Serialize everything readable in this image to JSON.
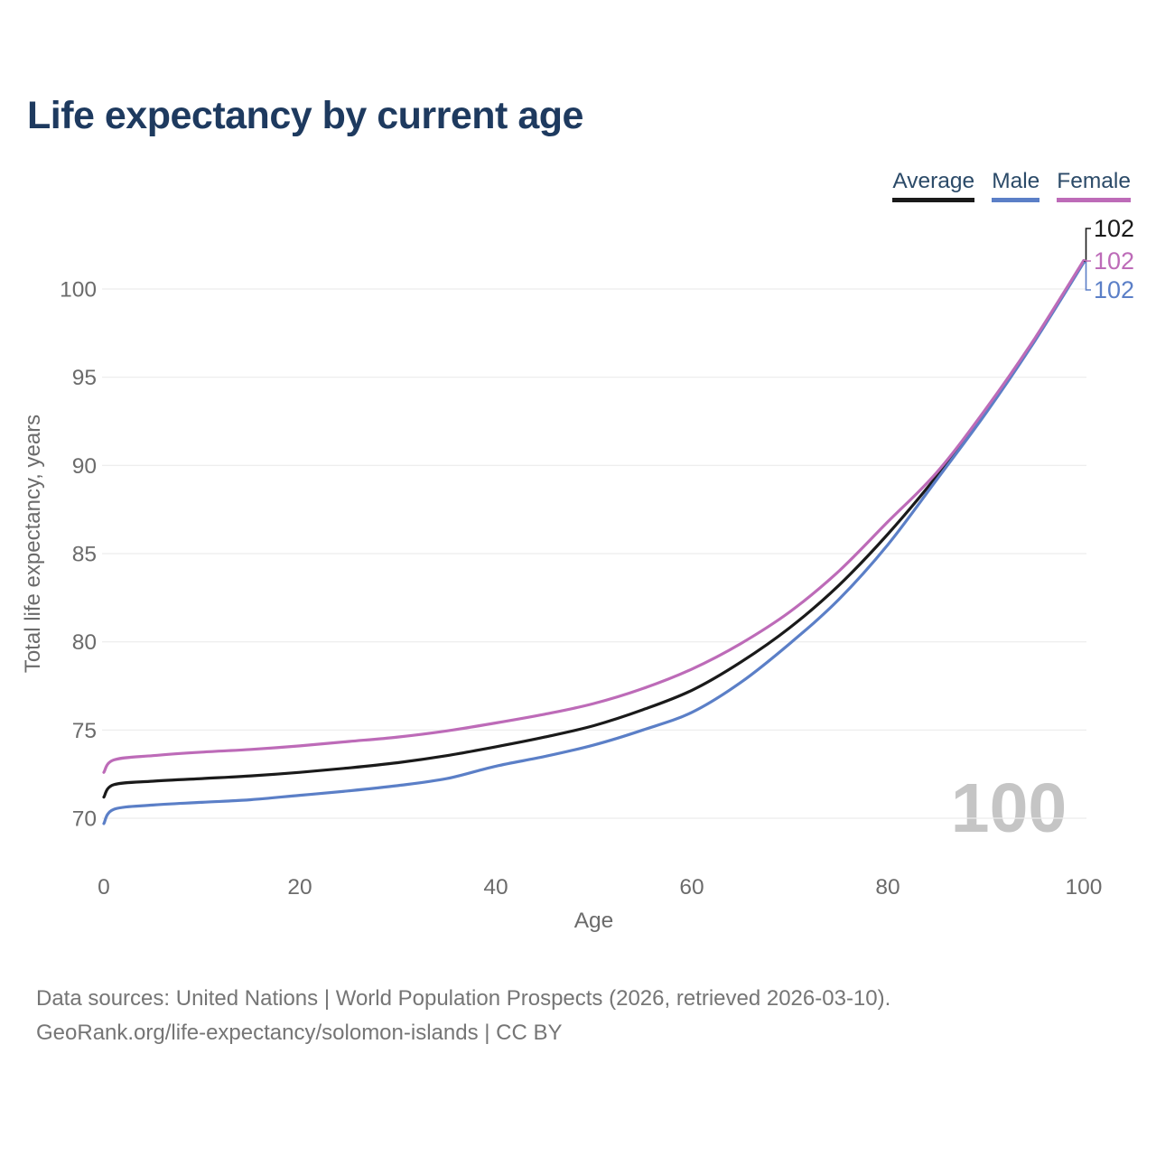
{
  "title": "Life expectancy by current age",
  "watermark": "100",
  "colors": {
    "title": "#1e3a5f",
    "legend_text": "#2b4a68",
    "average": "#1a1a1a",
    "male": "#5b7fc7",
    "female": "#bd6bb8",
    "grid": "#ececec",
    "tick_text": "#6b6b6b",
    "axis_title_text": "#6b6b6b",
    "watermark": "#c5c5c5",
    "footer_text": "#757575"
  },
  "footer": {
    "line1": "Data sources: United Nations | World Population Prospects (2026, retrieved 2026-03-10).",
    "line2": "GeoRank.org/life-expectancy/solomon-islands | CC BY"
  },
  "chart_data": {
    "type": "line",
    "title": "Life expectancy by current age",
    "xlabel": "Age",
    "ylabel": "Total life expectancy, years",
    "xlim": [
      0,
      100
    ],
    "ylim": [
      69.5,
      102
    ],
    "x_ticks": [
      0,
      20,
      40,
      60,
      80,
      100
    ],
    "y_ticks": [
      70,
      75,
      80,
      85,
      90,
      95,
      100
    ],
    "grid": true,
    "legend_position": "top-right",
    "x": [
      0,
      1,
      5,
      10,
      15,
      20,
      25,
      30,
      35,
      40,
      45,
      50,
      55,
      60,
      65,
      70,
      75,
      80,
      85,
      90,
      95,
      100
    ],
    "series": [
      {
        "name": "Average",
        "color_key": "average",
        "end_label": "102",
        "values": [
          71.2,
          71.9,
          72.1,
          72.25,
          72.4,
          72.6,
          72.85,
          73.15,
          73.55,
          74.05,
          74.6,
          75.25,
          76.15,
          77.25,
          78.85,
          80.8,
          83.2,
          86.1,
          89.4,
          93.05,
          97.1,
          101.55
        ]
      },
      {
        "name": "Male",
        "color_key": "male",
        "end_label": "102",
        "values": [
          69.7,
          70.5,
          70.75,
          70.9,
          71.05,
          71.3,
          71.55,
          71.85,
          72.25,
          72.95,
          73.5,
          74.15,
          75.0,
          76.0,
          77.7,
          79.9,
          82.4,
          85.5,
          89.2,
          92.95,
          97.05,
          101.5
        ]
      },
      {
        "name": "Female",
        "color_key": "female",
        "end_label": "102",
        "values": [
          72.6,
          73.3,
          73.55,
          73.75,
          73.9,
          74.1,
          74.35,
          74.6,
          74.95,
          75.4,
          75.9,
          76.5,
          77.35,
          78.45,
          79.9,
          81.7,
          84.0,
          86.8,
          89.6,
          93.2,
          97.2,
          101.62
        ]
      }
    ]
  }
}
